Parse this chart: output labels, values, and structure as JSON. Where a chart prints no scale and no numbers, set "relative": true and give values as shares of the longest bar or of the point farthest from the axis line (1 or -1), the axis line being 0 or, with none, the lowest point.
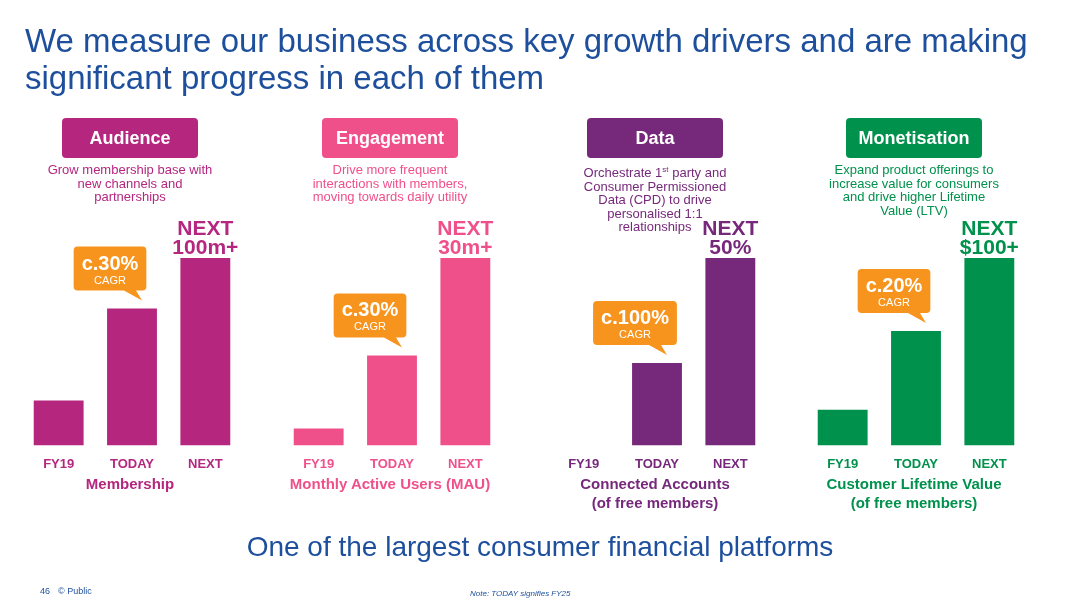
{
  "chart_data": [
    {
      "type": "other",
      "title": "We measure our business across key growth drivers and are making significant progress in each of them",
      "annotations": [
        "One of the largest consumer financial platforms",
        "46",
        "© Public",
        "Note: TODAY signifies FY25"
      ]
    },
    {
      "type": "bar",
      "relative": true,
      "title": "Audience",
      "subtitle": "Grow membership base with new channels and partnerships",
      "xlabel": "Membership",
      "categories": [
        "FY19",
        "TODAY",
        "NEXT"
      ],
      "values": [
        0.24,
        0.73,
        1
      ],
      "color": "#b5267f",
      "annotations": [
        {
          "text": "NEXT 100m+",
          "x": "NEXT",
          "y": 1
        },
        {
          "text": "c.30% CAGR",
          "x": "TODAY",
          "y": 0.73
        }
      ]
    },
    {
      "type": "bar",
      "relative": true,
      "title": "Engagement",
      "subtitle": "Drive more frequent interactions with members, moving towards daily utility",
      "xlabel": "Monthly Active Users (MAU)",
      "categories": [
        "FY19",
        "TODAY",
        "NEXT"
      ],
      "values": [
        0.09,
        0.48,
        1
      ],
      "color": "#f0508a",
      "annotations": [
        {
          "text": "NEXT 30m+",
          "x": "NEXT",
          "y": 1
        },
        {
          "text": "c.30% CAGR",
          "x": "TODAY",
          "y": 0.48
        }
      ]
    },
    {
      "type": "bar",
      "relative": true,
      "title": "Data",
      "subtitle": "Orchestrate 1$^{st}$ party and Consumer Permissioned Data (CPD) to drive personalised 1:1 relationships",
      "xlabel": "Connected Accounts\n(of free members)",
      "categories": [
        "FY19",
        "TODAY",
        "NEXT"
      ],
      "values": [
        0,
        0.44,
        1
      ],
      "color": "#76287a",
      "annotations": [
        {
          "text": "NEXT 50%",
          "x": "NEXT",
          "y": 1
        },
        {
          "text": "c.100% CAGR",
          "x": "TODAY",
          "y": 0.44
        }
      ]
    },
    {
      "type": "bar",
      "relative": true,
      "title": "Monetisation",
      "subtitle": "Expand product offerings to increase value for consumers and drive higher Lifetime Value (LTV)",
      "xlabel": "Customer Lifetime Value\n(of free members)",
      "categories": [
        "FY19",
        "TODAY",
        "NEXT"
      ],
      "values": [
        0.19,
        0.61,
        1
      ],
      "color": "#00914c",
      "annotations": [
        {
          "text": "NEXT $100+",
          "x": "NEXT",
          "y": 1
        },
        {
          "text": "c.20% CAGR",
          "x": "TODAY",
          "y": 0.61
        }
      ]
    }
  ]
}
